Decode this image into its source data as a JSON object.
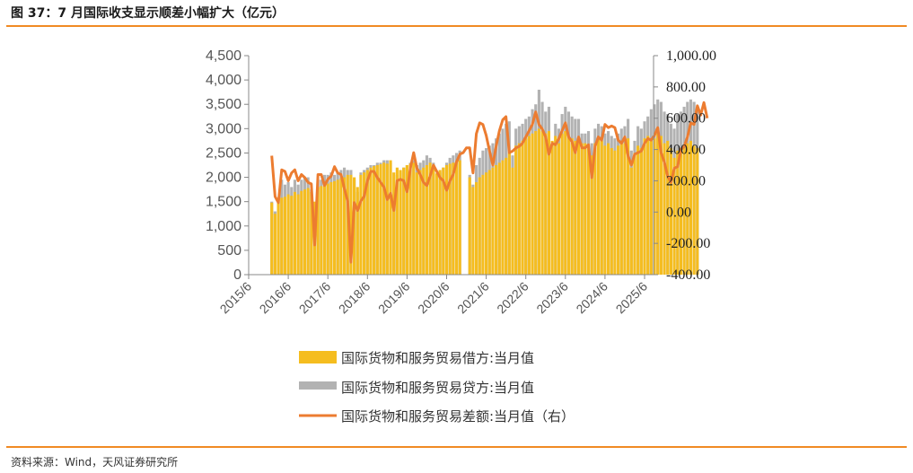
{
  "header": {
    "title": "图 37：7 月国际收支显示顺差小幅扩大（亿元）"
  },
  "footer": {
    "source": "资料来源：Wind，天风证券研究所"
  },
  "colors": {
    "accent_rule": "#f08a24",
    "debit": "#f5bd1f",
    "credit": "#b2b2b2",
    "balance": "#ec7c30"
  },
  "chart_data": {
    "type": "bar+line",
    "title": "",
    "x_tick_labels": [
      "2015/6",
      "2016/6",
      "2017/6",
      "2018/6",
      "2019/6",
      "2020/6",
      "2021/6",
      "2022/6",
      "2023/6",
      "2024/6",
      "2025/6"
    ],
    "left_axis": {
      "ylim": [
        0,
        4500
      ],
      "ticks": [
        0,
        500,
        1000,
        1500,
        2000,
        2500,
        3000,
        3500,
        4000,
        4500
      ],
      "tick_labels": [
        "0",
        "500",
        "1,000",
        "1,500",
        "2,000",
        "2,500",
        "3,000",
        "3,500",
        "4,000",
        "4,500"
      ]
    },
    "right_axis": {
      "ylim": [
        -400,
        1000
      ],
      "ticks": [
        -400,
        -200,
        0,
        200,
        400,
        600,
        800,
        1000
      ],
      "tick_labels": [
        "-400.00",
        "-200.00",
        "0.00",
        "200.00",
        "400.00",
        "600.00",
        "800.00",
        "1,000.00"
      ]
    },
    "grid": false,
    "legend_position": "bottom",
    "x_start": "2016-01",
    "series": [
      {
        "name": "国际货物和服务贸易借方:当月值",
        "kind": "bar",
        "axis": "left",
        "values": [
          1480,
          1250,
          1550,
          1580,
          1600,
          1650,
          1620,
          1700,
          1650,
          1720,
          1750,
          1780,
          1700,
          1500,
          1800,
          1820,
          1850,
          1870,
          1900,
          1920,
          1950,
          1980,
          2000,
          2050,
          2050,
          2000,
          1800,
          2050,
          2100,
          2150,
          2200,
          2230,
          2250,
          2270,
          2300,
          2280,
          2350,
          2100,
          2200,
          2150,
          2200,
          2250,
          2280,
          2300,
          2100,
          2150,
          2200,
          2250,
          2300,
          2250,
          2080,
          2150,
          2200,
          2250,
          2280,
          2300,
          2320,
          2350,
          0,
          0,
          2000,
          1800,
          1900,
          2000,
          2050,
          2100,
          2150,
          2200,
          2250,
          2300,
          2350,
          2400,
          2500,
          2200,
          2650,
          2700,
          2750,
          2800,
          2850,
          2900,
          2950,
          3000,
          2950,
          2900,
          2950,
          2750,
          2850,
          2700,
          2900,
          2950,
          2850,
          2800,
          2750,
          2800,
          2700,
          2700,
          2650,
          2450,
          2700,
          2800,
          2750,
          2650,
          2700,
          2600,
          2550,
          2650,
          2750,
          2700,
          2800,
          2200,
          2500,
          2650,
          2600,
          2800,
          2850,
          2750,
          2800,
          2900,
          2850,
          2700,
          2750,
          2600,
          2400,
          2550,
          2600,
          2650,
          2700,
          2750,
          2650,
          2600
        ]
      },
      {
        "name": "国际货物和服务贸易贷方:当月值",
        "kind": "bar",
        "axis": "left",
        "values": [
          1500,
          1300,
          1500,
          1950,
          1850,
          1900,
          1800,
          1950,
          1850,
          1950,
          2000,
          2000,
          1750,
          1100,
          1950,
          1950,
          2050,
          2050,
          2100,
          2050,
          2100,
          2150,
          2200,
          2150,
          2150,
          1950,
          1700,
          2100,
          2150,
          2200,
          2250,
          2250,
          2300,
          2300,
          2350,
          2350,
          2300,
          1650,
          2050,
          2100,
          2200,
          2250,
          2300,
          2350,
          2250,
          2300,
          2350,
          2450,
          2400,
          2300,
          1950,
          2100,
          2200,
          2300,
          2400,
          2450,
          2500,
          2550,
          0,
          0,
          2050,
          1850,
          2250,
          2400,
          2550,
          2600,
          2650,
          2700,
          2800,
          2900,
          3000,
          3100,
          3150,
          2450,
          3000,
          3050,
          3100,
          3200,
          3250,
          3400,
          3500,
          3800,
          3550,
          3350,
          3450,
          2700,
          3100,
          3000,
          3300,
          3450,
          3350,
          3250,
          3200,
          3200,
          2900,
          2900,
          2950,
          2700,
          3000,
          3100,
          3050,
          2900,
          2950,
          2850,
          2800,
          2900,
          3000,
          3050,
          3200,
          2550,
          2750,
          3050,
          3000,
          3150,
          3250,
          3400,
          3500,
          3600,
          3550,
          3350,
          3300,
          3100,
          3000,
          3300,
          3350,
          3450,
          3550,
          3600,
          3550,
          3400
        ]
      },
      {
        "name": "国际货物和服务贸易差额:当月值（右）",
        "kind": "line",
        "axis": "right",
        "values": [
          360,
          100,
          60,
          270,
          260,
          200,
          250,
          270,
          200,
          240,
          220,
          190,
          180,
          -210,
          240,
          240,
          170,
          210,
          230,
          290,
          250,
          240,
          150,
          70,
          -320,
          60,
          10,
          70,
          100,
          200,
          260,
          260,
          220,
          190,
          160,
          80,
          120,
          10,
          200,
          210,
          200,
          130,
          280,
          380,
          280,
          240,
          190,
          170,
          230,
          300,
          260,
          220,
          200,
          140,
          200,
          240,
          320,
          370,
          380,
          410,
          410,
          250,
          500,
          570,
          560,
          490,
          390,
          300,
          420,
          520,
          590,
          610,
          380,
          390,
          410,
          420,
          440,
          480,
          520,
          560,
          640,
          560,
          530,
          480,
          370,
          440,
          430,
          470,
          520,
          570,
          480,
          450,
          380,
          480,
          410,
          410,
          430,
          220,
          420,
          480,
          460,
          560,
          540,
          550,
          540,
          460,
          440,
          480,
          360,
          300,
          370,
          380,
          390,
          440,
          470,
          460,
          490,
          540,
          380,
          320,
          230,
          190,
          280,
          290,
          400,
          420,
          480,
          570,
          560,
          680,
          620,
          700,
          600
        ]
      }
    ]
  }
}
